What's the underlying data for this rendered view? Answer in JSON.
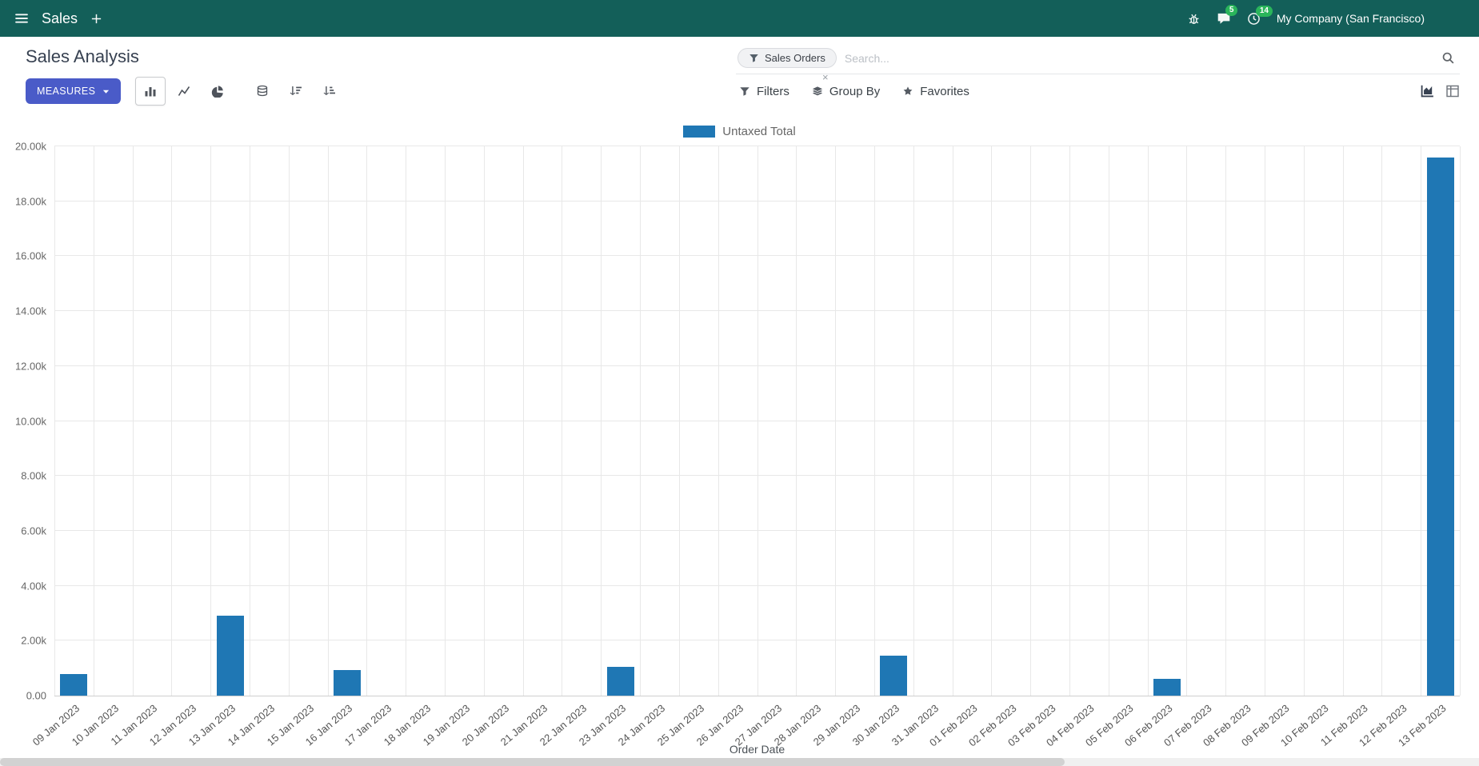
{
  "topbar": {
    "app_menu_label": "Sales",
    "company_name": "My Company (San Francisco)",
    "messages_badge": "5",
    "activities_badge": "14"
  },
  "control_panel": {
    "title": "Sales Analysis",
    "measures_button": "MEASURES",
    "filters_label": "Filters",
    "group_by_label": "Group By",
    "favorites_label": "Favorites",
    "search": {
      "facet_label": "Sales Orders",
      "placeholder": "Search...",
      "facet_remove_glyph": "×"
    }
  },
  "colors": {
    "navbar_bg": "#135f59",
    "primary_button": "#4a5bc8",
    "bar_color": "#1f77b4",
    "badge_green": "#2ab55b"
  },
  "icons": {
    "menu-icon": "hamburger",
    "plus-icon": "+",
    "bug-icon": "bug",
    "messages-icon": "speech-bubble",
    "activities-icon": "clock",
    "search-icon": "magnifier",
    "filter-icon": "funnel",
    "group-by-icon": "layers",
    "favorites-icon": "star",
    "bar-chart-icon": "vertical-bars",
    "line-chart-icon": "polyline",
    "pie-chart-icon": "pie",
    "stacked-icon": "database",
    "sort-desc-icon": "bars-desc-arrow",
    "sort-asc-icon": "bars-asc-arrow",
    "graph-view-icon": "area-chart",
    "pivot-view-icon": "table-grid",
    "caret-down-icon": "▾",
    "close-icon": "×"
  },
  "chart_data": {
    "type": "bar",
    "title": "",
    "legend": [
      {
        "label": "Untaxed Total",
        "color": "#1f77b4"
      }
    ],
    "legend_position": "top",
    "grid": true,
    "xlabel": "Order Date",
    "ylabel": "",
    "ylim": [
      0,
      20000
    ],
    "ytick_step": 2000,
    "ytick_labels": [
      "0.00",
      "2.00k",
      "4.00k",
      "6.00k",
      "8.00k",
      "10.00k",
      "12.00k",
      "14.00k",
      "16.00k",
      "18.00k",
      "20.00k"
    ],
    "categories": [
      "09 Jan 2023",
      "10 Jan 2023",
      "11 Jan 2023",
      "12 Jan 2023",
      "13 Jan 2023",
      "14 Jan 2023",
      "15 Jan 2023",
      "16 Jan 2023",
      "17 Jan 2023",
      "18 Jan 2023",
      "19 Jan 2023",
      "20 Jan 2023",
      "21 Jan 2023",
      "22 Jan 2023",
      "23 Jan 2023",
      "24 Jan 2023",
      "25 Jan 2023",
      "26 Jan 2023",
      "27 Jan 2023",
      "28 Jan 2023",
      "29 Jan 2023",
      "30 Jan 2023",
      "31 Jan 2023",
      "01 Feb 2023",
      "02 Feb 2023",
      "03 Feb 2023",
      "04 Feb 2023",
      "05 Feb 2023",
      "06 Feb 2023",
      "07 Feb 2023",
      "08 Feb 2023",
      "09 Feb 2023",
      "10 Feb 2023",
      "11 Feb 2023",
      "12 Feb 2023",
      "13 Feb 2023"
    ],
    "values": [
      780,
      0,
      0,
      0,
      2900,
      0,
      0,
      920,
      0,
      0,
      0,
      0,
      0,
      0,
      1060,
      0,
      0,
      0,
      0,
      0,
      0,
      1470,
      0,
      0,
      0,
      0,
      0,
      0,
      620,
      0,
      0,
      0,
      0,
      0,
      0,
      19600
    ]
  }
}
